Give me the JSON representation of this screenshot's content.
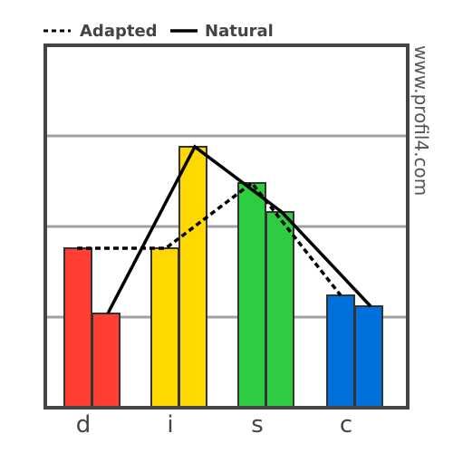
{
  "chart_data": {
    "type": "bar",
    "title": "",
    "xlabel": "",
    "ylabel": "",
    "categories": [
      "d",
      "i",
      "s",
      "c"
    ],
    "ylim": [
      0,
      100
    ],
    "grid": true,
    "legend_position": "top-left",
    "series": [
      {
        "name": "Adapted",
        "values": [
          44,
          44,
          62,
          31
        ],
        "color_d": "#ff3e34",
        "color_i": "#ffd800",
        "color_s": "#2ecc40",
        "color_c": "#0070da"
      },
      {
        "name": "Natural",
        "values": [
          26,
          72,
          54,
          28
        ]
      }
    ],
    "bar_colors": [
      "#ff3e34",
      "#ffd800",
      "#2ecc40",
      "#0070da"
    ],
    "lines": {
      "adapted_style": "dashed",
      "natural_style": "solid",
      "color": "#000000"
    }
  },
  "watermark": "www.profil4.com"
}
